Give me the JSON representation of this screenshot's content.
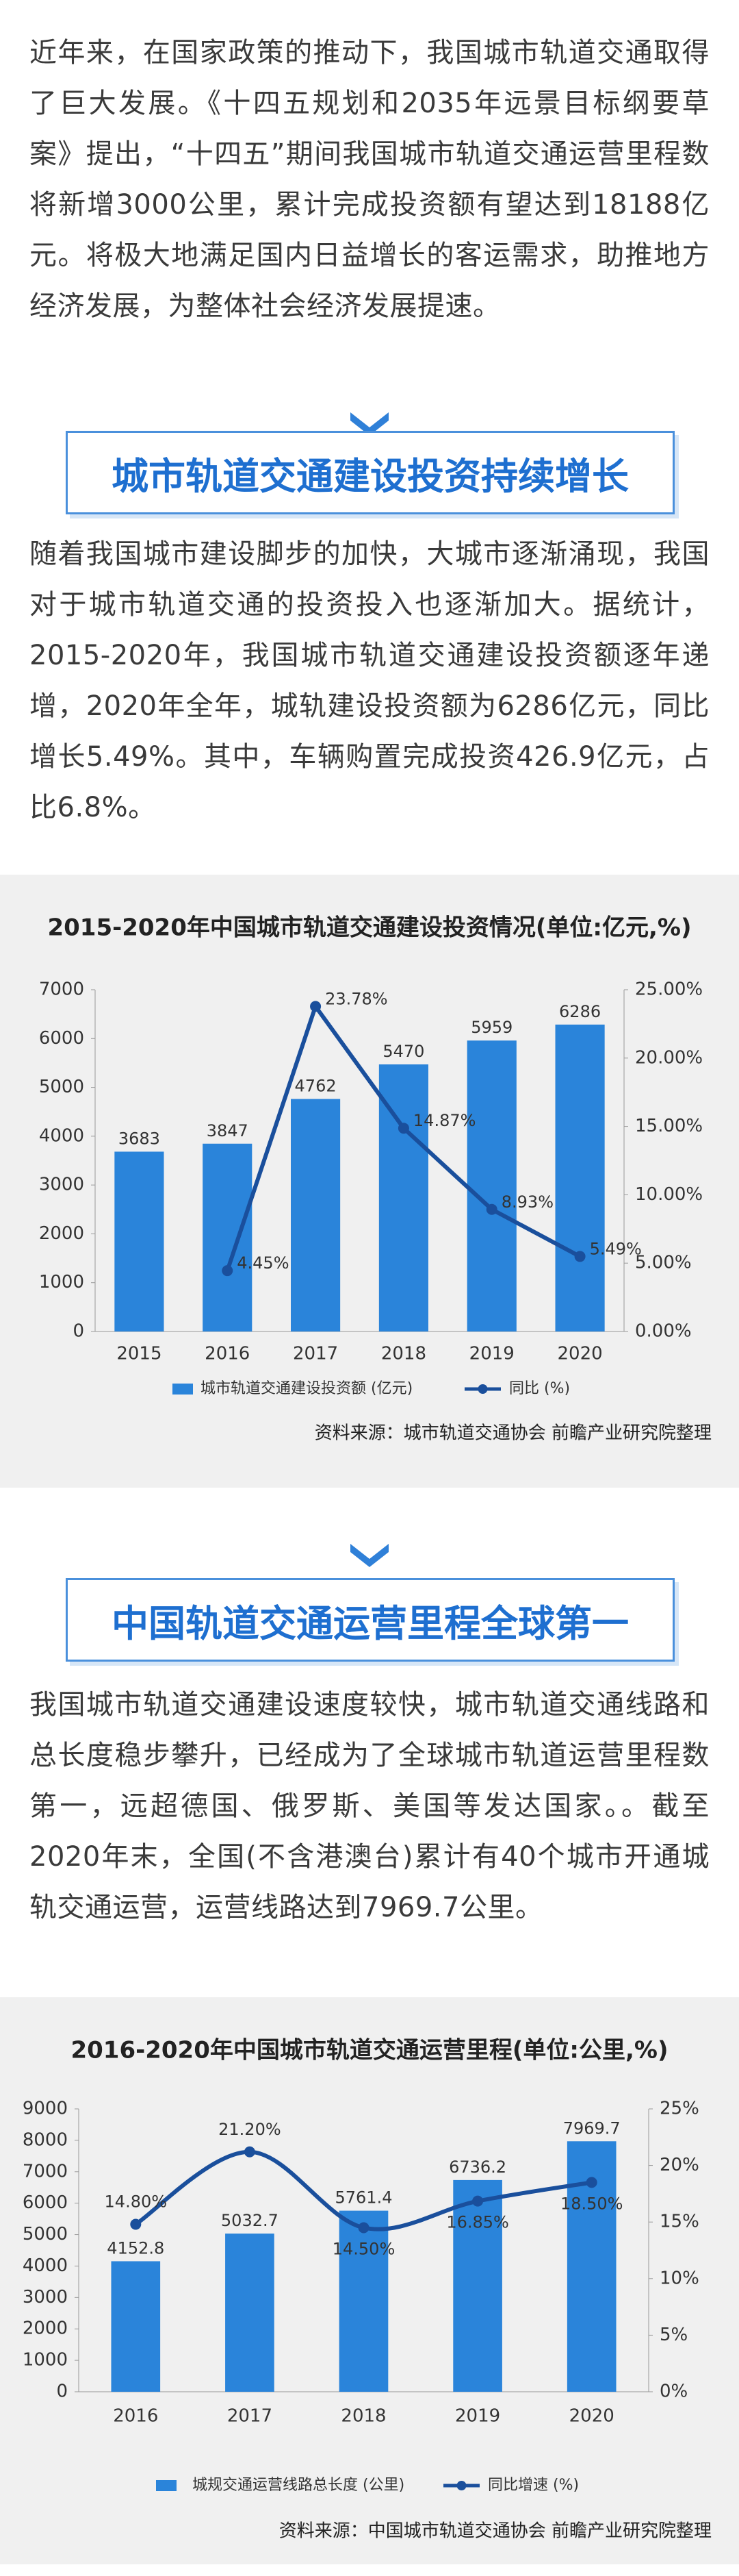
{
  "paragraphs": [
    "近年来，在国家政策的推动下，我国城市轨道交通取得了巨大发展。《十四五规划和2035年远景目标纲要草案》提出，“十四五”期间我国城市轨道交通运营里程数将新增3000公里，累计完成投资额有望达到18188亿元。将极大地满足国内日益增长的客运需求，助推地方经济发展，为整体社会经济发展提速。",
    "随着我国城市建设脚步的加快，大城市逐渐涌现，我国对于城市轨道交通的投资投入也逐渐加大。据统计，2015-2020年，我国城市轨道交通建设投资额逐年递增，2020年全年，城轨建设投资额为6286亿元，同比增长5.49%。其中，车辆购置完成投资426.9亿元，占比6.8%。",
    "我国城市轨道交通建设速度较快，城市轨道交通线路和总长度稳步攀升，已经成为了全球城市轨道运营里程数第一，远超德国、俄罗斯、美国等发达国家。。截至2020年末，全国(不含港澳台)累计有40个城市开通城轨交通运营，运营线路达到7969.7公里。"
  ],
  "headings": [
    "城市轨道交通建设投资持续增长",
    "中国轨道交通运营里程全球第一"
  ],
  "chart_data": [
    {
      "type": "bar",
      "title": "2015-2020年中国城市轨道交通建设投资情况(单位:亿元,%)",
      "categories": [
        "2015",
        "2016",
        "2017",
        "2018",
        "2019",
        "2020"
      ],
      "series": [
        {
          "name": "城市轨道交通建设投资额 (亿元)",
          "color": "#2a84da",
          "values": [
            3683,
            3847,
            4762,
            5470,
            5959,
            6286
          ]
        },
        {
          "name": "同比 (%)",
          "type": "line",
          "axis": "y2",
          "color": "#1a4f9c",
          "values": [
            null,
            4.45,
            23.78,
            14.87,
            8.93,
            5.49
          ],
          "value_labels": [
            null,
            "4.45%",
            "23.78%",
            "14.87%",
            "8.93%",
            "5.49%"
          ]
        }
      ],
      "ylim": [
        0,
        7000
      ],
      "yticks": [
        0,
        1000,
        2000,
        3000,
        4000,
        5000,
        6000,
        7000
      ],
      "y2lim": [
        0,
        25
      ],
      "y2ticks": [
        {
          "value": 0,
          "label": "0.00%"
        },
        {
          "value": 5,
          "label": "5.00%"
        },
        {
          "value": 10,
          "label": "10.00%"
        },
        {
          "value": 15,
          "label": "15.00%"
        },
        {
          "value": 20,
          "label": "20.00%"
        },
        {
          "value": 25,
          "label": "25.00%"
        }
      ],
      "source": "资料来源：城市轨道交通协会 前瞻产业研究院整理"
    },
    {
      "type": "bar",
      "title": "2016-2020年中国城市轨道交通运营里程(单位:公里,%)",
      "categories": [
        "2016",
        "2017",
        "2018",
        "2019",
        "2020"
      ],
      "series": [
        {
          "name": "城规交通运营线路总长度 (公里)",
          "color": "#2a84da",
          "values": [
            4152.8,
            5032.7,
            5761.4,
            6736.2,
            7969.7
          ]
        },
        {
          "name": "同比增速 (%)",
          "type": "line",
          "axis": "y2",
          "smooth": true,
          "color": "#1a4f9c",
          "values": [
            14.8,
            21.2,
            14.5,
            16.85,
            18.5
          ],
          "value_labels": [
            "14.80%",
            "21.20%",
            "14.50%",
            "16.85%",
            "18.50%"
          ]
        }
      ],
      "ylim": [
        0,
        9000
      ],
      "yticks": [
        0,
        1000,
        2000,
        3000,
        4000,
        5000,
        6000,
        7000,
        8000,
        9000
      ],
      "y2lim": [
        0,
        25
      ],
      "y2ticks": [
        {
          "value": 0,
          "label": "0%"
        },
        {
          "value": 5,
          "label": "5%"
        },
        {
          "value": 10,
          "label": "10%"
        },
        {
          "value": 15,
          "label": "15%"
        },
        {
          "value": 20,
          "label": "20%"
        },
        {
          "value": 25,
          "label": "25%"
        }
      ],
      "source": "资料来源：中国城市轨道交通协会 前瞻产业研究院整理"
    }
  ]
}
